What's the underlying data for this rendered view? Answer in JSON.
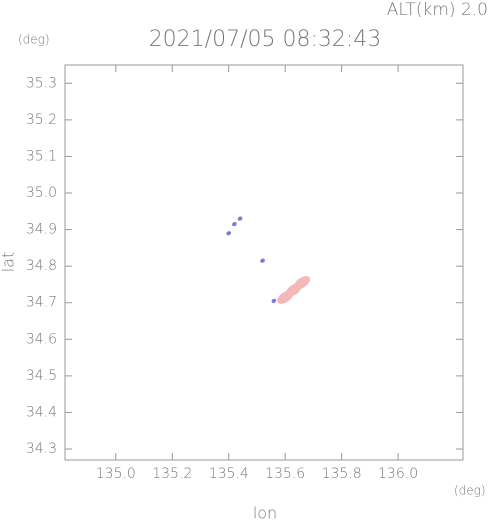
{
  "chart_data": {
    "type": "scatter",
    "title": "2021/07/05 08:32:43",
    "subtitle": "ALT(km) 2.0",
    "x_label": "lon",
    "y_label": "lat",
    "x_unit": "(deg)",
    "y_unit": "(deg)",
    "xlim": [
      134.82,
      136.23
    ],
    "ylim": [
      34.27,
      35.35
    ],
    "xticks": [
      {
        "value": 135.0,
        "label": "135.0"
      },
      135.2,
      135.4,
      135.6,
      135.8,
      {
        "value": 136.0,
        "label": "136.0"
      }
    ],
    "yticks": [
      34.3,
      34.4,
      34.5,
      34.6,
      34.7,
      34.8,
      34.9,
      {
        "value": 35.0,
        "label": "35.0"
      },
      35.1,
      35.2,
      35.3
    ],
    "series": [
      {
        "color": "#7a7ae0",
        "x": [
          135.4,
          135.42,
          135.44,
          135.52,
          135.56
        ],
        "values": [
          34.89,
          34.915,
          34.93,
          34.815,
          34.705
        ]
      },
      {
        "color": "#f4b8b8",
        "x": [
          135.6,
          135.63,
          135.66
        ],
        "values": [
          34.715,
          34.735,
          34.755
        ]
      }
    ]
  }
}
